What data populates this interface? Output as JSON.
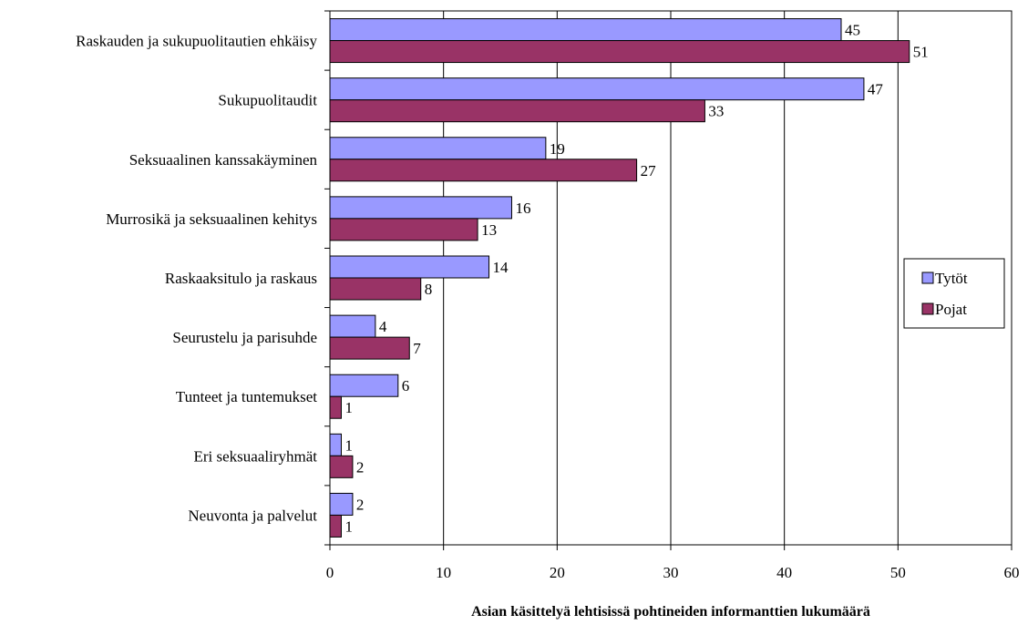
{
  "chart_data": {
    "type": "bar",
    "orientation": "horizontal",
    "categories": [
      "Raskauden ja sukupuolitautien ehkäisy",
      "Sukupuolitaudit",
      "Seksuaalinen kanssakäyminen",
      "Murrosikä ja seksuaalinen kehitys",
      "Raskaaksitulo ja raskaus",
      "Seurustelu ja parisuhde",
      "Tunteet ja tuntemukset",
      "Eri seksuaaliryhmät",
      "Neuvonta ja palvelut"
    ],
    "series": [
      {
        "name": "Tytöt",
        "color": "#9999ff",
        "values": [
          45,
          47,
          19,
          16,
          14,
          4,
          6,
          1,
          2
        ]
      },
      {
        "name": "Pojat",
        "color": "#993366",
        "values": [
          51,
          33,
          27,
          13,
          8,
          7,
          1,
          2,
          1
        ]
      }
    ],
    "xlabel": "Asian käsittelyä lehtisissä pohtineiden informanttien lukumäärä",
    "ylabel": "",
    "xlim": [
      0,
      60
    ],
    "xticks": [
      "0",
      "10",
      "20",
      "30",
      "40",
      "50",
      "60"
    ],
    "grid": true,
    "legend": "right",
    "data_labels": true
  }
}
